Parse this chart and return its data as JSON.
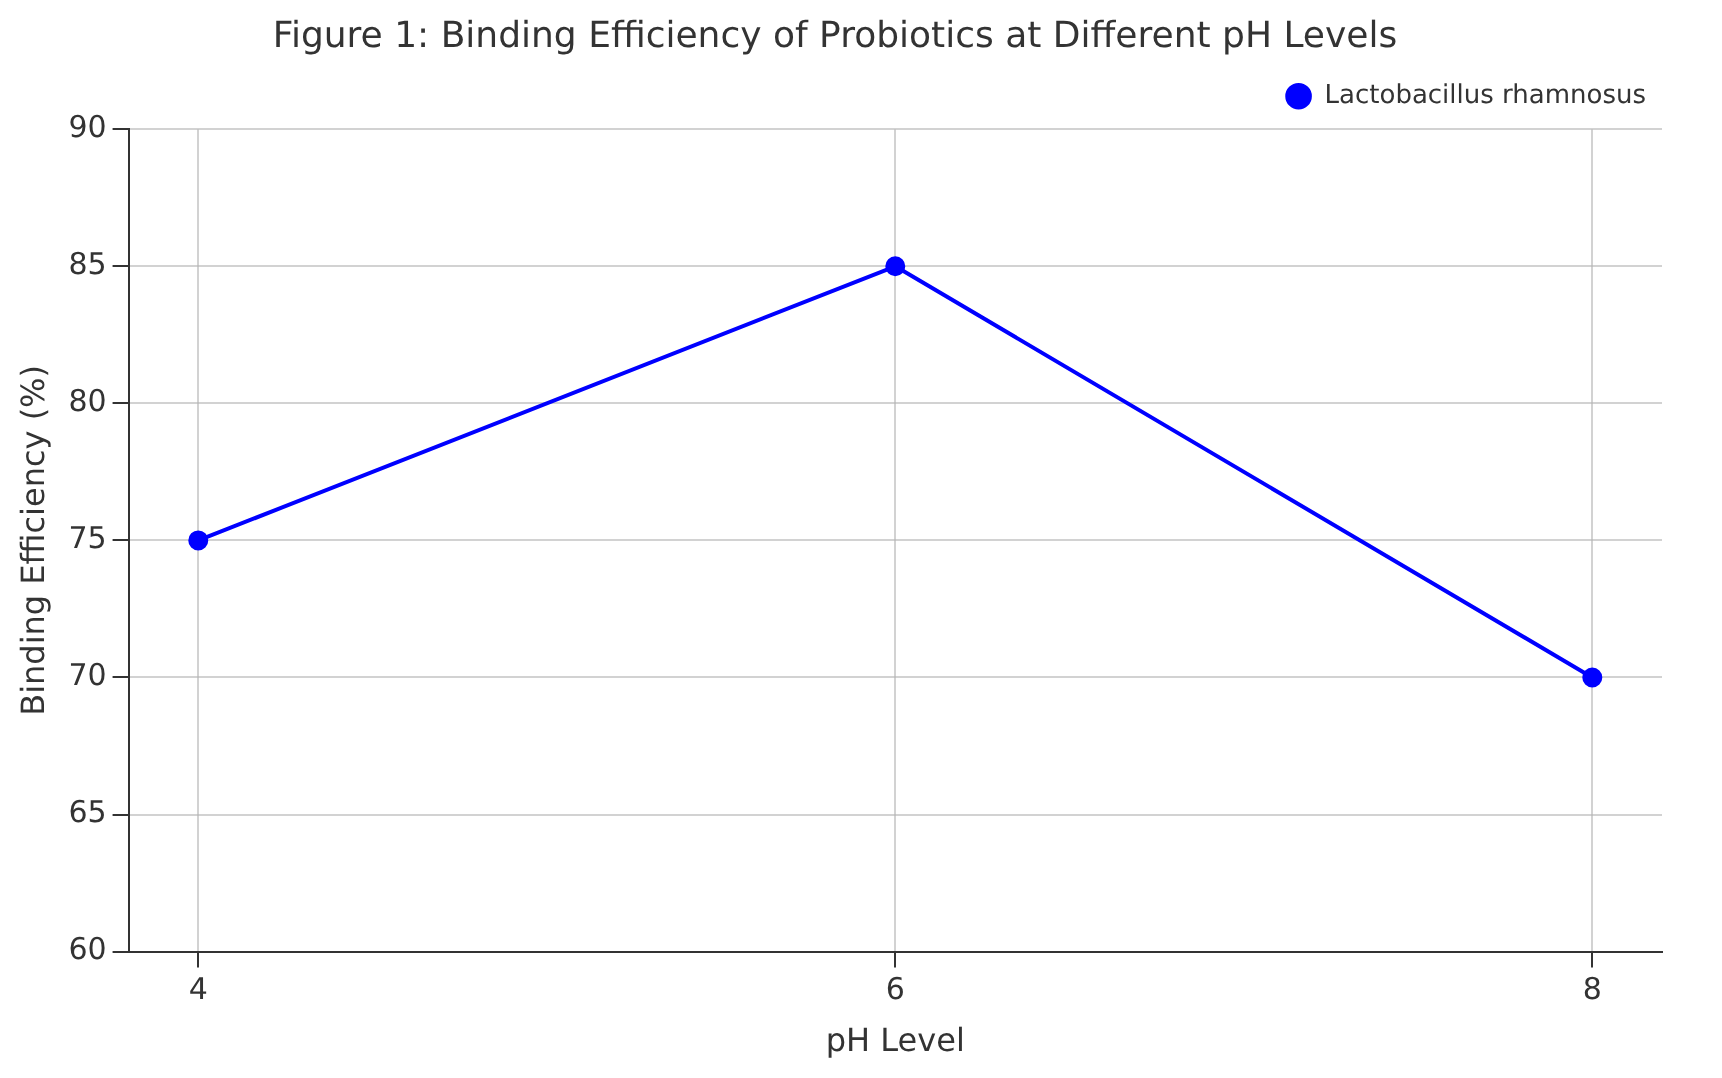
{
  "chart_data": {
    "type": "line",
    "title": "Figure 1: Binding Efficiency of Probiotics at Different pH Levels",
    "xlabel": "pH Level",
    "ylabel": "Binding Efficiency (%)",
    "x": [
      4,
      6,
      8
    ],
    "series": [
      {
        "name": "Lactobacillus rhamnosus",
        "color": "#0000ff",
        "values": [
          75,
          85,
          70
        ]
      }
    ],
    "xlim": [
      3.8,
      8.2
    ],
    "xticks": [
      4,
      6,
      8
    ],
    "ylim": [
      60,
      90
    ],
    "yticks": [
      60,
      65,
      70,
      75,
      80,
      85,
      90
    ],
    "grid": true,
    "legend": "top right",
    "marker": "circle",
    "line_style": "solid"
  }
}
